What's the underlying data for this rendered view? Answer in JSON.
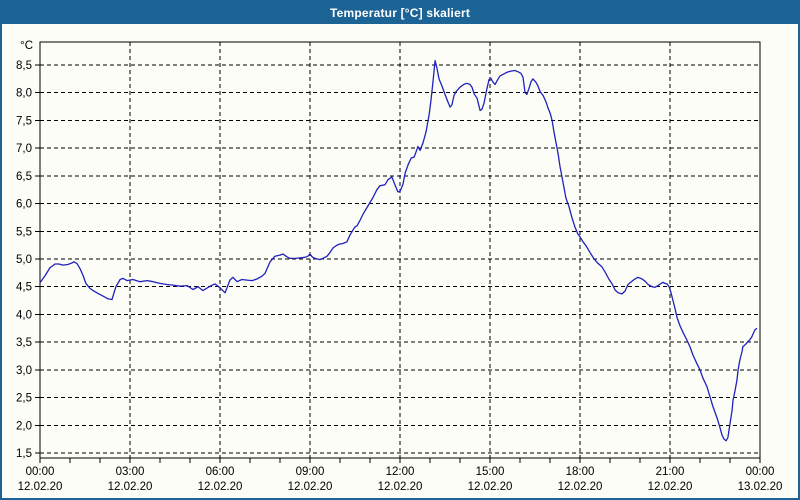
{
  "window": {
    "title": "Temperatur [°C] skaliert"
  },
  "colors": {
    "titlebar_bg": "#1d6496",
    "window_border": "#1d6496",
    "background": "#fbfdf6",
    "line": "#2121bd",
    "grid": "#000000",
    "text": "#000000",
    "title_text": "#ffffff"
  },
  "chart_data": {
    "type": "line",
    "title": "Temperatur [°C] skaliert",
    "ylabel": "°C",
    "xlabel": "",
    "grid_style": "dashed",
    "legend_position": "none",
    "ylim": [
      1.5,
      8.5
    ],
    "y_tick_step": 0.5,
    "y_ticks": [
      {
        "value": 8.5,
        "label": "8,5"
      },
      {
        "value": 8.0,
        "label": "8,0"
      },
      {
        "value": 7.5,
        "label": "7,5"
      },
      {
        "value": 7.0,
        "label": "7,0"
      },
      {
        "value": 6.5,
        "label": "6,5"
      },
      {
        "value": 6.0,
        "label": "6,0"
      },
      {
        "value": 5.5,
        "label": "5,5"
      },
      {
        "value": 5.0,
        "label": "5,0"
      },
      {
        "value": 4.5,
        "label": "4,5"
      },
      {
        "value": 4.0,
        "label": "4,0"
      },
      {
        "value": 3.5,
        "label": "3,5"
      },
      {
        "value": 3.0,
        "label": "3,0"
      },
      {
        "value": 2.5,
        "label": "2,5"
      },
      {
        "value": 2.0,
        "label": "2,0"
      },
      {
        "value": 1.5,
        "label": "1,5"
      }
    ],
    "xlim_hours": [
      0,
      24
    ],
    "x_minor_tick_every_hours": 1,
    "x_gridline_hours": [
      3,
      6,
      9,
      12,
      15,
      18,
      21
    ],
    "x_major_ticks": [
      {
        "hour": 0,
        "time": "00:00",
        "date": "12.02.20"
      },
      {
        "hour": 3,
        "time": "03:00",
        "date": "12.02.20"
      },
      {
        "hour": 6,
        "time": "06:00",
        "date": "12.02.20"
      },
      {
        "hour": 9,
        "time": "09:00",
        "date": "12.02.20"
      },
      {
        "hour": 12,
        "time": "12:00",
        "date": "12.02.20"
      },
      {
        "hour": 15,
        "time": "15:00",
        "date": "12.02.20"
      },
      {
        "hour": 18,
        "time": "18:00",
        "date": "12.02.20"
      },
      {
        "hour": 21,
        "time": "21:00",
        "date": "12.02.20"
      },
      {
        "hour": 24,
        "time": "00:00",
        "date": "13.02.20"
      }
    ],
    "series": [
      {
        "name": "Temperatur [°C]",
        "color": "#2121bd",
        "points": [
          [
            0,
            4.57
          ],
          [
            0.17,
            4.7
          ],
          [
            0.33,
            4.84
          ],
          [
            0.5,
            4.91
          ],
          [
            0.63,
            4.91
          ],
          [
            0.77,
            4.89
          ],
          [
            0.93,
            4.9
          ],
          [
            1.07,
            4.93
          ],
          [
            1.13,
            4.95
          ],
          [
            1.23,
            4.92
          ],
          [
            1.33,
            4.83
          ],
          [
            1.43,
            4.71
          ],
          [
            1.53,
            4.56
          ],
          [
            1.67,
            4.47
          ],
          [
            1.77,
            4.43
          ],
          [
            1.93,
            4.38
          ],
          [
            2.1,
            4.33
          ],
          [
            2.27,
            4.28
          ],
          [
            2.4,
            4.27
          ],
          [
            2.53,
            4.5
          ],
          [
            2.67,
            4.63
          ],
          [
            2.77,
            4.65
          ],
          [
            2.9,
            4.61
          ],
          [
            3.1,
            4.63
          ],
          [
            3.33,
            4.59
          ],
          [
            3.57,
            4.61
          ],
          [
            3.77,
            4.59
          ],
          [
            4,
            4.56
          ],
          [
            4.23,
            4.54
          ],
          [
            4.43,
            4.53
          ],
          [
            4.67,
            4.51
          ],
          [
            4.9,
            4.52
          ],
          [
            5.1,
            4.45
          ],
          [
            5.27,
            4.5
          ],
          [
            5.43,
            4.43
          ],
          [
            5.67,
            4.51
          ],
          [
            5.83,
            4.55
          ],
          [
            6,
            4.48
          ],
          [
            6.17,
            4.39
          ],
          [
            6.33,
            4.62
          ],
          [
            6.43,
            4.67
          ],
          [
            6.57,
            4.59
          ],
          [
            6.73,
            4.63
          ],
          [
            6.9,
            4.62
          ],
          [
            7.07,
            4.61
          ],
          [
            7.23,
            4.64
          ],
          [
            7.4,
            4.69
          ],
          [
            7.5,
            4.74
          ],
          [
            7.67,
            4.95
          ],
          [
            7.83,
            5.05
          ],
          [
            8,
            5.07
          ],
          [
            8.1,
            5.09
          ],
          [
            8.23,
            5.04
          ],
          [
            8.33,
            5.01
          ],
          [
            8.5,
            5.01
          ],
          [
            8.67,
            5.02
          ],
          [
            8.83,
            5.03
          ],
          [
            8.93,
            5.05
          ],
          [
            9,
            5.09
          ],
          [
            9.07,
            5.04
          ],
          [
            9.17,
            5.01
          ],
          [
            9.33,
            4.99
          ],
          [
            9.43,
            5.01
          ],
          [
            9.57,
            5.05
          ],
          [
            9.67,
            5.12
          ],
          [
            9.77,
            5.2
          ],
          [
            9.9,
            5.25
          ],
          [
            10,
            5.27
          ],
          [
            10.1,
            5.28
          ],
          [
            10.23,
            5.31
          ],
          [
            10.33,
            5.43
          ],
          [
            10.43,
            5.52
          ],
          [
            10.5,
            5.58
          ],
          [
            10.57,
            5.6
          ],
          [
            10.67,
            5.7
          ],
          [
            10.77,
            5.81
          ],
          [
            10.9,
            5.93
          ],
          [
            11,
            6.02
          ],
          [
            11.1,
            6.11
          ],
          [
            11.23,
            6.25
          ],
          [
            11.33,
            6.32
          ],
          [
            11.5,
            6.34
          ],
          [
            11.6,
            6.43
          ],
          [
            11.73,
            6.48
          ],
          [
            11.83,
            6.34
          ],
          [
            11.93,
            6.21
          ],
          [
            12,
            6.22
          ],
          [
            12.1,
            6.35
          ],
          [
            12.17,
            6.55
          ],
          [
            12.27,
            6.7
          ],
          [
            12.37,
            6.82
          ],
          [
            12.47,
            6.84
          ],
          [
            12.5,
            6.88
          ],
          [
            12.6,
            7.03
          ],
          [
            12.67,
            6.96
          ],
          [
            12.77,
            7.1
          ],
          [
            12.87,
            7.3
          ],
          [
            12.97,
            7.6
          ],
          [
            13.03,
            7.85
          ],
          [
            13.1,
            8.2
          ],
          [
            13.17,
            8.58
          ],
          [
            13.23,
            8.45
          ],
          [
            13.3,
            8.25
          ],
          [
            13.4,
            8.12
          ],
          [
            13.5,
            7.97
          ],
          [
            13.6,
            7.83
          ],
          [
            13.67,
            7.74
          ],
          [
            13.73,
            7.78
          ],
          [
            13.8,
            7.95
          ],
          [
            13.87,
            8.02
          ],
          [
            14,
            8.1
          ],
          [
            14.13,
            8.15
          ],
          [
            14.23,
            8.17
          ],
          [
            14.33,
            8.15
          ],
          [
            14.4,
            8.1
          ],
          [
            14.47,
            7.98
          ],
          [
            14.57,
            7.9
          ],
          [
            14.67,
            7.68
          ],
          [
            14.73,
            7.7
          ],
          [
            14.8,
            7.81
          ],
          [
            14.9,
            8.08
          ],
          [
            14.97,
            8.24
          ],
          [
            15.03,
            8.26
          ],
          [
            15.1,
            8.19
          ],
          [
            15.17,
            8.15
          ],
          [
            15.23,
            8.21
          ],
          [
            15.33,
            8.3
          ],
          [
            15.43,
            8.33
          ],
          [
            15.57,
            8.37
          ],
          [
            15.7,
            8.39
          ],
          [
            15.83,
            8.4
          ],
          [
            15.93,
            8.38
          ],
          [
            16.03,
            8.35
          ],
          [
            16.1,
            8.28
          ],
          [
            16.17,
            8.0
          ],
          [
            16.23,
            7.97
          ],
          [
            16.3,
            8.08
          ],
          [
            16.37,
            8.2
          ],
          [
            16.43,
            8.25
          ],
          [
            16.53,
            8.19
          ],
          [
            16.6,
            8.12
          ],
          [
            16.67,
            8.02
          ],
          [
            16.77,
            7.95
          ],
          [
            16.87,
            7.83
          ],
          [
            16.93,
            7.73
          ],
          [
            17,
            7.64
          ],
          [
            17.07,
            7.5
          ],
          [
            17.13,
            7.3
          ],
          [
            17.2,
            7.1
          ],
          [
            17.27,
            6.9
          ],
          [
            17.33,
            6.68
          ],
          [
            17.4,
            6.48
          ],
          [
            17.47,
            6.28
          ],
          [
            17.53,
            6.1
          ],
          [
            17.63,
            5.95
          ],
          [
            17.73,
            5.75
          ],
          [
            17.83,
            5.58
          ],
          [
            17.93,
            5.45
          ],
          [
            18,
            5.4
          ],
          [
            18.1,
            5.31
          ],
          [
            18.2,
            5.24
          ],
          [
            18.33,
            5.12
          ],
          [
            18.47,
            5.0
          ],
          [
            18.6,
            4.92
          ],
          [
            18.73,
            4.86
          ],
          [
            18.83,
            4.77
          ],
          [
            18.97,
            4.63
          ],
          [
            19.07,
            4.55
          ],
          [
            19.17,
            4.44
          ],
          [
            19.27,
            4.39
          ],
          [
            19.4,
            4.37
          ],
          [
            19.5,
            4.42
          ],
          [
            19.6,
            4.54
          ],
          [
            19.73,
            4.6
          ],
          [
            19.83,
            4.64
          ],
          [
            19.93,
            4.67
          ],
          [
            20.07,
            4.64
          ],
          [
            20.17,
            4.6
          ],
          [
            20.27,
            4.54
          ],
          [
            20.4,
            4.5
          ],
          [
            20.5,
            4.49
          ],
          [
            20.6,
            4.52
          ],
          [
            20.7,
            4.56
          ],
          [
            20.77,
            4.58
          ],
          [
            20.83,
            4.56
          ],
          [
            20.9,
            4.55
          ],
          [
            20.97,
            4.5
          ],
          [
            21.03,
            4.4
          ],
          [
            21.1,
            4.25
          ],
          [
            21.17,
            4.1
          ],
          [
            21.23,
            3.95
          ],
          [
            21.33,
            3.8
          ],
          [
            21.43,
            3.68
          ],
          [
            21.57,
            3.53
          ],
          [
            21.67,
            3.41
          ],
          [
            21.77,
            3.26
          ],
          [
            21.9,
            3.11
          ],
          [
            22,
            3.0
          ],
          [
            22.1,
            2.85
          ],
          [
            22.23,
            2.7
          ],
          [
            22.33,
            2.52
          ],
          [
            22.43,
            2.34
          ],
          [
            22.57,
            2.13
          ],
          [
            22.67,
            1.95
          ],
          [
            22.73,
            1.83
          ],
          [
            22.8,
            1.75
          ],
          [
            22.87,
            1.72
          ],
          [
            22.93,
            1.78
          ],
          [
            23,
            2.03
          ],
          [
            23.07,
            2.27
          ],
          [
            23.1,
            2.45
          ],
          [
            23.17,
            2.63
          ],
          [
            23.23,
            2.81
          ],
          [
            23.27,
            3.0
          ],
          [
            23.33,
            3.18
          ],
          [
            23.4,
            3.33
          ],
          [
            23.43,
            3.42
          ],
          [
            23.5,
            3.45
          ],
          [
            23.6,
            3.51
          ],
          [
            23.67,
            3.55
          ],
          [
            23.73,
            3.6
          ],
          [
            23.83,
            3.72
          ],
          [
            23.9,
            3.75
          ]
        ]
      }
    ]
  }
}
